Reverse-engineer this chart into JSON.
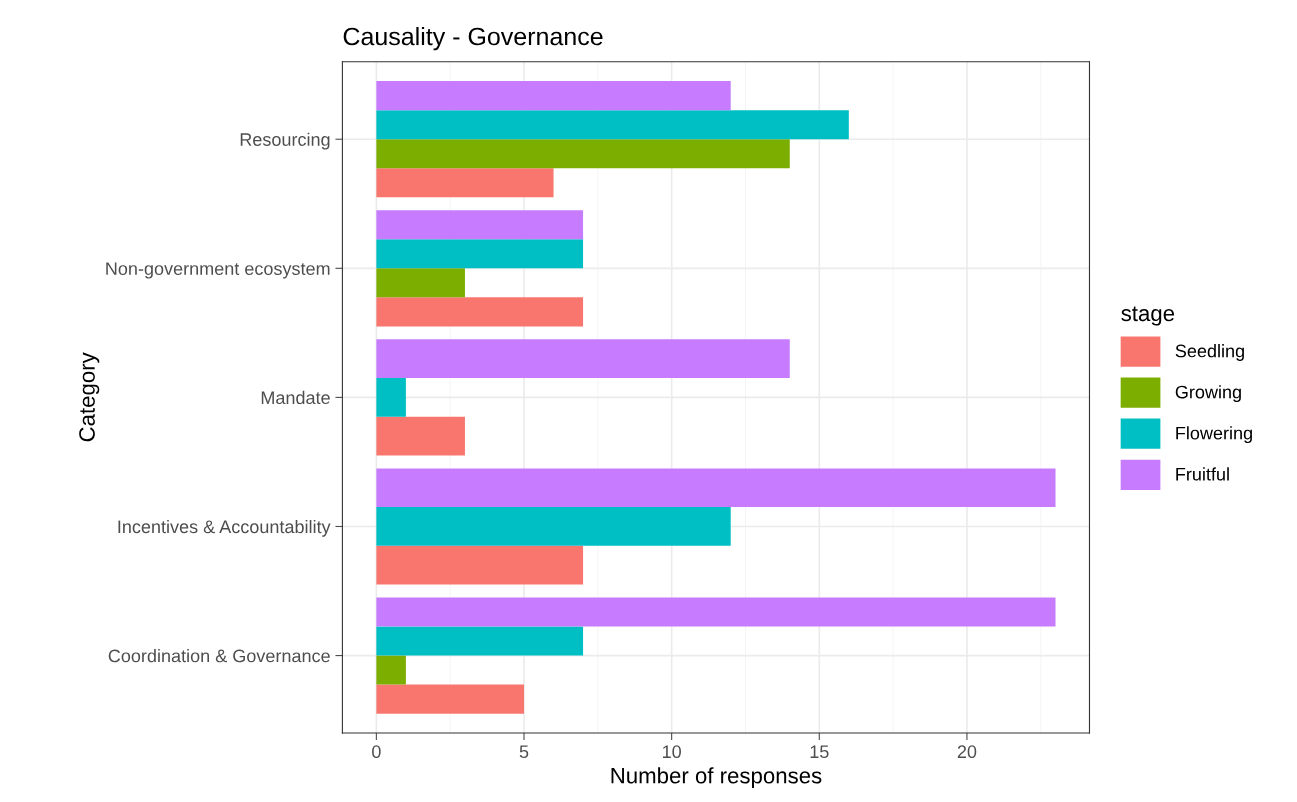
{
  "chart_data": {
    "type": "bar",
    "orientation": "horizontal",
    "title": "Causality - Governance",
    "xlabel": "Number of responses",
    "ylabel": "Category",
    "legend_title": "stage",
    "legend": "right",
    "categories": [
      "Resourcing",
      "Non-government ecosystem",
      "Mandate",
      "Incentives & Accountability",
      "Coordination & Governance"
    ],
    "series": [
      {
        "name": "Seedling",
        "color": "#f8766d",
        "values": [
          6,
          7,
          3,
          7,
          5
        ]
      },
      {
        "name": "Growing",
        "color": "#7cae00",
        "values": [
          14,
          3,
          null,
          null,
          1
        ]
      },
      {
        "name": "Flowering",
        "color": "#00bfc4",
        "values": [
          16,
          7,
          1,
          12,
          7
        ]
      },
      {
        "name": "Fruitful",
        "color": "#c77cff",
        "values": [
          12,
          7,
          14,
          23,
          23
        ]
      }
    ],
    "xlim": [
      -1.15,
      24.15
    ],
    "xticks": [
      0,
      5,
      10,
      15,
      20
    ],
    "grid": true
  }
}
